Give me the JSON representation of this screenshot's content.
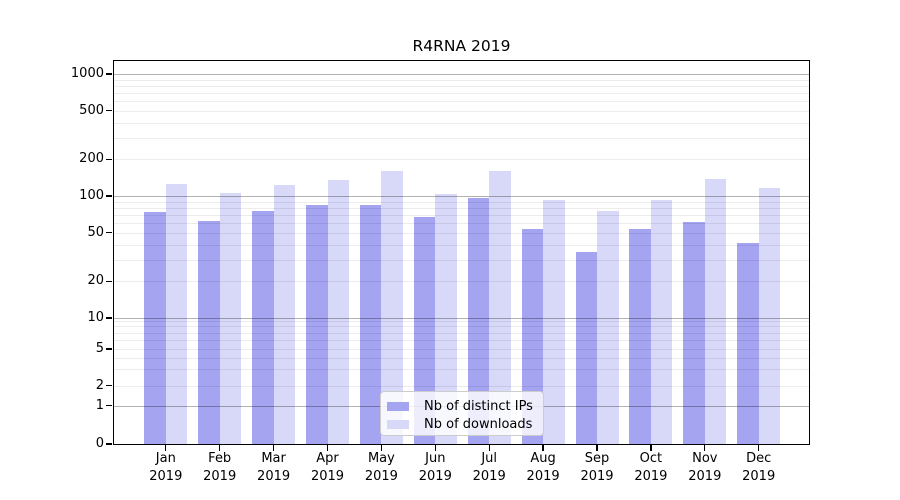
{
  "chart_data": {
    "type": "bar",
    "title": "R4RNA 2019",
    "categories": [
      "Jan 2019",
      "Feb 2019",
      "Mar 2019",
      "Apr 2019",
      "May 2019",
      "Jun 2019",
      "Jul 2019",
      "Aug 2019",
      "Sep 2019",
      "Oct 2019",
      "Nov 2019",
      "Dec 2019"
    ],
    "series": [
      {
        "name": "Nb of distinct IPs",
        "color": "#a4a4f1",
        "values": [
          74,
          62,
          75,
          84,
          84,
          67,
          96,
          54,
          35,
          54,
          61,
          41
        ]
      },
      {
        "name": "Nb of downloads",
        "color": "#d8d8f8",
        "values": [
          126,
          105,
          123,
          134,
          160,
          104,
          160,
          92,
          76,
          92,
          139,
          116
        ]
      }
    ],
    "xlabel": "",
    "ylabel": "",
    "yscale": "symlog",
    "ylim": [
      0,
      1280
    ],
    "ytick_labels": [
      "0",
      "1",
      "2",
      "5",
      "10",
      "20",
      "50",
      "100",
      "200",
      "500",
      "1000"
    ],
    "grid": "horizontal-major-and-minor",
    "legend_position": "lower-center"
  },
  "colors": {
    "major_grid": "rgba(0,0,0,0.30)",
    "minor_grid": "rgba(0,0,0,0.075)",
    "spine": "#000000",
    "background": "#ffffff"
  }
}
